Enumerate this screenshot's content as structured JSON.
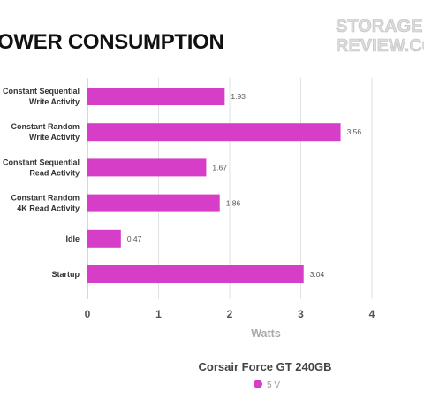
{
  "header": {
    "title": "OWER CONSUMPTION",
    "logo_line1": "STORAGE",
    "logo_line2": "REVIEW.CO"
  },
  "chart_data": {
    "type": "bar",
    "orientation": "horizontal",
    "title": "Corsair Force GT 240GB",
    "xlabel": "Watts",
    "ylabel": "",
    "xlim": [
      0,
      4
    ],
    "xticks": [
      0,
      1,
      2,
      3,
      4
    ],
    "grid": true,
    "legend_position": "bottom",
    "categories": [
      [
        "Constant Sequential",
        "Write Activity"
      ],
      [
        "Constant Random",
        "Write Activity"
      ],
      [
        "Constant Sequential",
        "Read Activity"
      ],
      [
        "Constant Random",
        "4K Read Activity"
      ],
      [
        "Idle"
      ],
      [
        "Startup"
      ]
    ],
    "series": [
      {
        "name": "5 V",
        "color": "#d63ec8",
        "values": [
          1.93,
          3.56,
          1.67,
          1.86,
          0.47,
          3.04
        ]
      }
    ]
  }
}
